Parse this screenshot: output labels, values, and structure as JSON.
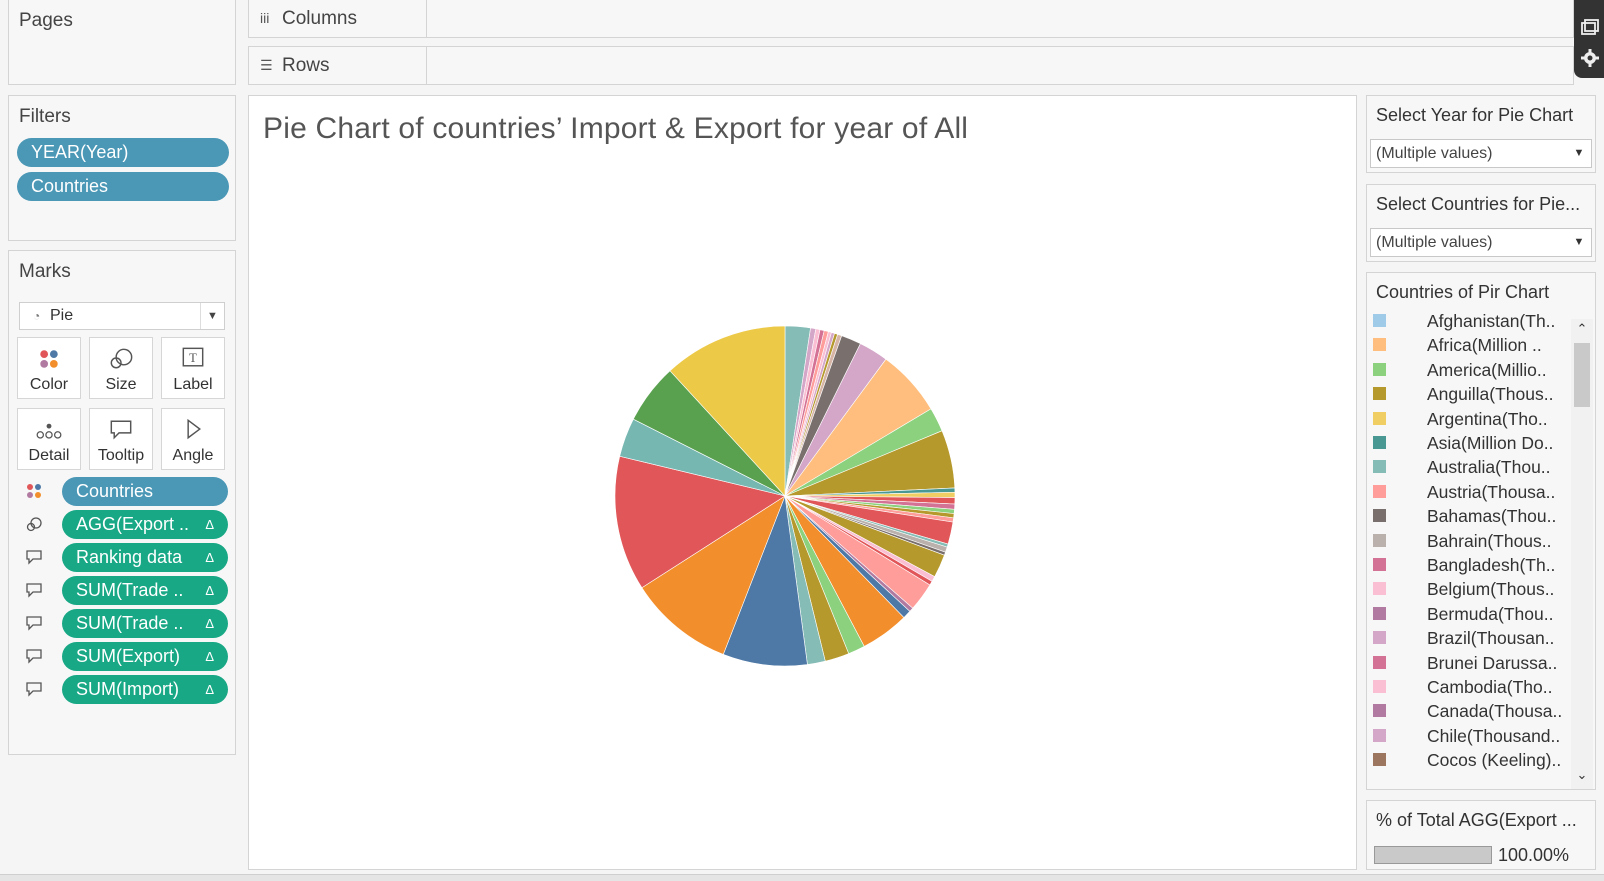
{
  "pages": {
    "title": "Pages"
  },
  "filters": {
    "title": "Filters",
    "pills": [
      "YEAR(Year)",
      "Countries"
    ]
  },
  "marks": {
    "title": "Marks",
    "type": "Pie",
    "buttons": [
      "Color",
      "Size",
      "Label",
      "Detail",
      "Tooltip",
      "Angle"
    ],
    "shelf": [
      {
        "label": "Countries",
        "kind": "color",
        "color": "#4a97b6",
        "delta": ""
      },
      {
        "label": "AGG(Export ..",
        "kind": "size",
        "color": "#18a886",
        "delta": "Δ"
      },
      {
        "label": "Ranking data",
        "kind": "tooltip",
        "color": "#18a886",
        "delta": "Δ"
      },
      {
        "label": "SUM(Trade ..",
        "kind": "tooltip",
        "color": "#18a886",
        "delta": "Δ"
      },
      {
        "label": "SUM(Trade ..",
        "kind": "tooltip",
        "color": "#18a886",
        "delta": "Δ"
      },
      {
        "label": "SUM(Export)",
        "kind": "tooltip",
        "color": "#18a886",
        "delta": "Δ"
      },
      {
        "label": "SUM(Import)",
        "kind": "tooltip",
        "color": "#18a886",
        "delta": "Δ"
      }
    ]
  },
  "shelves": {
    "columns": "Columns",
    "rows": "Rows"
  },
  "viz": {
    "title": "Pie Chart of countries’ Import & Export for year of All"
  },
  "year_filter": {
    "title": "Select Year for Pie Chart",
    "value": "(Multiple values)"
  },
  "country_filter": {
    "title": "Select Countries for Pie...",
    "value": "(Multiple values)"
  },
  "legend": {
    "title": "Countries of Pir Chart",
    "items": [
      {
        "label": "Afghanistan(Th..",
        "color": "#a0cbe8"
      },
      {
        "label": "Africa(Million ..",
        "color": "#ffbe7d"
      },
      {
        "label": "America(Millio..",
        "color": "#8cd17d"
      },
      {
        "label": "Anguilla(Thous..",
        "color": "#b6992d"
      },
      {
        "label": "Argentina(Tho..",
        "color": "#f1ce63"
      },
      {
        "label": "Asia(Million Do..",
        "color": "#499894"
      },
      {
        "label": "Australia(Thou..",
        "color": "#86bcb6"
      },
      {
        "label": "Austria(Thousa..",
        "color": "#ff9d9a"
      },
      {
        "label": "Bahamas(Thou..",
        "color": "#79706e"
      },
      {
        "label": "Bahrain(Thous..",
        "color": "#bab0ac"
      },
      {
        "label": "Bangladesh(Th..",
        "color": "#d37295"
      },
      {
        "label": "Belgium(Thous..",
        "color": "#fabfd2"
      },
      {
        "label": "Bermuda(Thou..",
        "color": "#b07aa1"
      },
      {
        "label": "Brazil(Thousan..",
        "color": "#d4a6c8"
      },
      {
        "label": "Brunei Darussa..",
        "color": "#d37295"
      },
      {
        "label": "Cambodia(Tho..",
        "color": "#fabfd2"
      },
      {
        "label": "Canada(Thousa..",
        "color": "#b07aa1"
      },
      {
        "label": "Chile(Thousand..",
        "color": "#d4a6c8"
      },
      {
        "label": "Cocos (Keeling)..",
        "color": "#9d7660"
      }
    ]
  },
  "pct_total": {
    "title": "% of Total AGG(Export ...",
    "value": "100.00%",
    "fraction": 1.0
  },
  "chart_data": {
    "type": "pie",
    "title": "Pie Chart of countries’ Import & Export for year of All",
    "slices": [
      {
        "value": 2.4,
        "color": "#86bcb6"
      },
      {
        "value": 0.5,
        "color": "#d4a6c8"
      },
      {
        "value": 0.4,
        "color": "#fabfd2"
      },
      {
        "value": 0.4,
        "color": "#d37295"
      },
      {
        "value": 0.4,
        "color": "#ff9d9a"
      },
      {
        "value": 0.3,
        "color": "#fabfd2"
      },
      {
        "value": 0.3,
        "color": "#d4a6c8"
      },
      {
        "value": 0.3,
        "color": "#b6992d"
      },
      {
        "value": 0.4,
        "color": "#d7b5a6"
      },
      {
        "value": 1.9,
        "color": "#79706e"
      },
      {
        "value": 2.8,
        "color": "#d4a6c8"
      },
      {
        "value": 6.3,
        "color": "#ffbe7d"
      },
      {
        "value": 2.3,
        "color": "#8cd17d"
      },
      {
        "value": 5.5,
        "color": "#b6992d"
      },
      {
        "value": 0.4,
        "color": "#499894"
      },
      {
        "value": 0.5,
        "color": "#f1ce63"
      },
      {
        "value": 0.6,
        "color": "#e15759"
      },
      {
        "value": 0.5,
        "color": "#d37295"
      },
      {
        "value": 0.4,
        "color": "#8cd17d"
      },
      {
        "value": 0.4,
        "color": "#b6992d"
      },
      {
        "value": 0.4,
        "color": "#ff9d9a"
      },
      {
        "value": 2.1,
        "color": "#e15759"
      },
      {
        "value": 0.3,
        "color": "#86bcb6"
      },
      {
        "value": 0.5,
        "color": "#bab0ac"
      },
      {
        "value": 0.3,
        "color": "#79706e"
      },
      {
        "value": 2.2,
        "color": "#b6992d"
      },
      {
        "value": 0.5,
        "color": "#fabfd2"
      },
      {
        "value": 0.4,
        "color": "#e15759"
      },
      {
        "value": 2.7,
        "color": "#ff9d9a"
      },
      {
        "value": 0.4,
        "color": "#b07aa1"
      },
      {
        "value": 0.8,
        "color": "#4e79a7"
      },
      {
        "value": 4.6,
        "color": "#f28e2b"
      },
      {
        "value": 1.6,
        "color": "#8cd17d"
      },
      {
        "value": 2.3,
        "color": "#b6992d"
      },
      {
        "value": 1.7,
        "color": "#86bcb6"
      },
      {
        "value": 8.0,
        "color": "#4e79a7"
      },
      {
        "value": 10.0,
        "color": "#f28e2b"
      },
      {
        "value": 12.8,
        "color": "#e15759"
      },
      {
        "value": 3.7,
        "color": "#76b7b2"
      },
      {
        "value": 5.7,
        "color": "#59a14f"
      },
      {
        "value": 11.8,
        "color": "#edc948"
      }
    ]
  }
}
